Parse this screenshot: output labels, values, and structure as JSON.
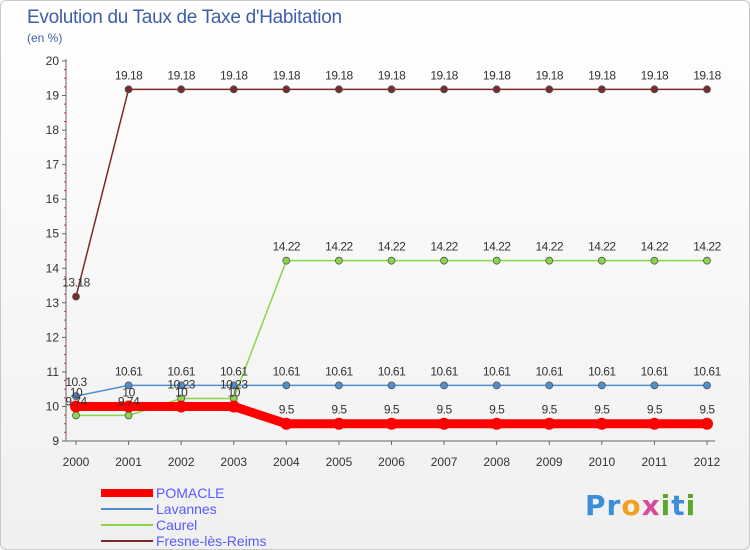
{
  "title": "Evolution du Taux de Taxe d'Habitation",
  "subtitle": "(en %)",
  "brand": {
    "text": "Proxiti",
    "letters": [
      "P",
      "r",
      "o",
      "x",
      "i",
      "t",
      "i"
    ],
    "colors": [
      "#3a8fd6",
      "#3a8fd6",
      "#f0a020",
      "#d84a9a",
      "#5aa72a",
      "#3a8fd6",
      "#5aa72a"
    ]
  },
  "chart_data": {
    "type": "line",
    "title": "Evolution du Taux de Taxe d'Habitation",
    "ylabel": "(en %)",
    "x": [
      "2000",
      "2001",
      "2002",
      "2003",
      "2004",
      "2005",
      "2006",
      "2007",
      "2008",
      "2009",
      "2010",
      "2011",
      "2012"
    ],
    "ylim": [
      9,
      20
    ],
    "yticks": [
      "9",
      "10",
      "11",
      "12",
      "13",
      "14",
      "15",
      "16",
      "17",
      "18",
      "19",
      "20"
    ],
    "grid": false,
    "legend": "bottom-left",
    "series": [
      {
        "name": "POMACLE",
        "color": "#ff0000",
        "thick": true,
        "values": [
          10,
          10,
          10,
          10,
          9.5,
          9.5,
          9.5,
          9.5,
          9.5,
          9.5,
          9.5,
          9.5,
          9.5
        ],
        "labels": [
          "10",
          "10",
          "10",
          "10",
          "9.5",
          "9.5",
          "9.5",
          "9.5",
          "9.5",
          "9.5",
          "9.5",
          "9.5",
          "9.5"
        ]
      },
      {
        "name": "Lavannes",
        "color": "#4f8fcf",
        "thick": false,
        "values": [
          10.3,
          10.61,
          10.61,
          10.61,
          10.61,
          10.61,
          10.61,
          10.61,
          10.61,
          10.61,
          10.61,
          10.61,
          10.61
        ],
        "labels": [
          "10.3",
          "10.61",
          "10.61",
          "10.61",
          "10.61",
          "10.61",
          "10.61",
          "10.61",
          "10.61",
          "10.61",
          "10.61",
          "10.61",
          "10.61"
        ]
      },
      {
        "name": "Caurel",
        "color": "#88d64a",
        "thick": false,
        "values": [
          9.74,
          9.74,
          10.23,
          10.23,
          14.22,
          14.22,
          14.22,
          14.22,
          14.22,
          14.22,
          14.22,
          14.22,
          14.22
        ],
        "labels": [
          "9.74",
          "9.74",
          "10.23",
          "10.23",
          "14.22",
          "14.22",
          "14.22",
          "14.22",
          "14.22",
          "14.22",
          "14.22",
          "14.22",
          "14.22"
        ]
      },
      {
        "name": "Fresne-lès-Reims",
        "color": "#7a2a2a",
        "thick": false,
        "values": [
          13.18,
          19.18,
          19.18,
          19.18,
          19.18,
          19.18,
          19.18,
          19.18,
          19.18,
          19.18,
          19.18,
          19.18,
          19.18
        ],
        "labels": [
          "13.18",
          "19.18",
          "19.18",
          "19.18",
          "19.18",
          "19.18",
          "19.18",
          "19.18",
          "19.18",
          "19.18",
          "19.18",
          "19.18",
          "19.18"
        ]
      }
    ]
  }
}
